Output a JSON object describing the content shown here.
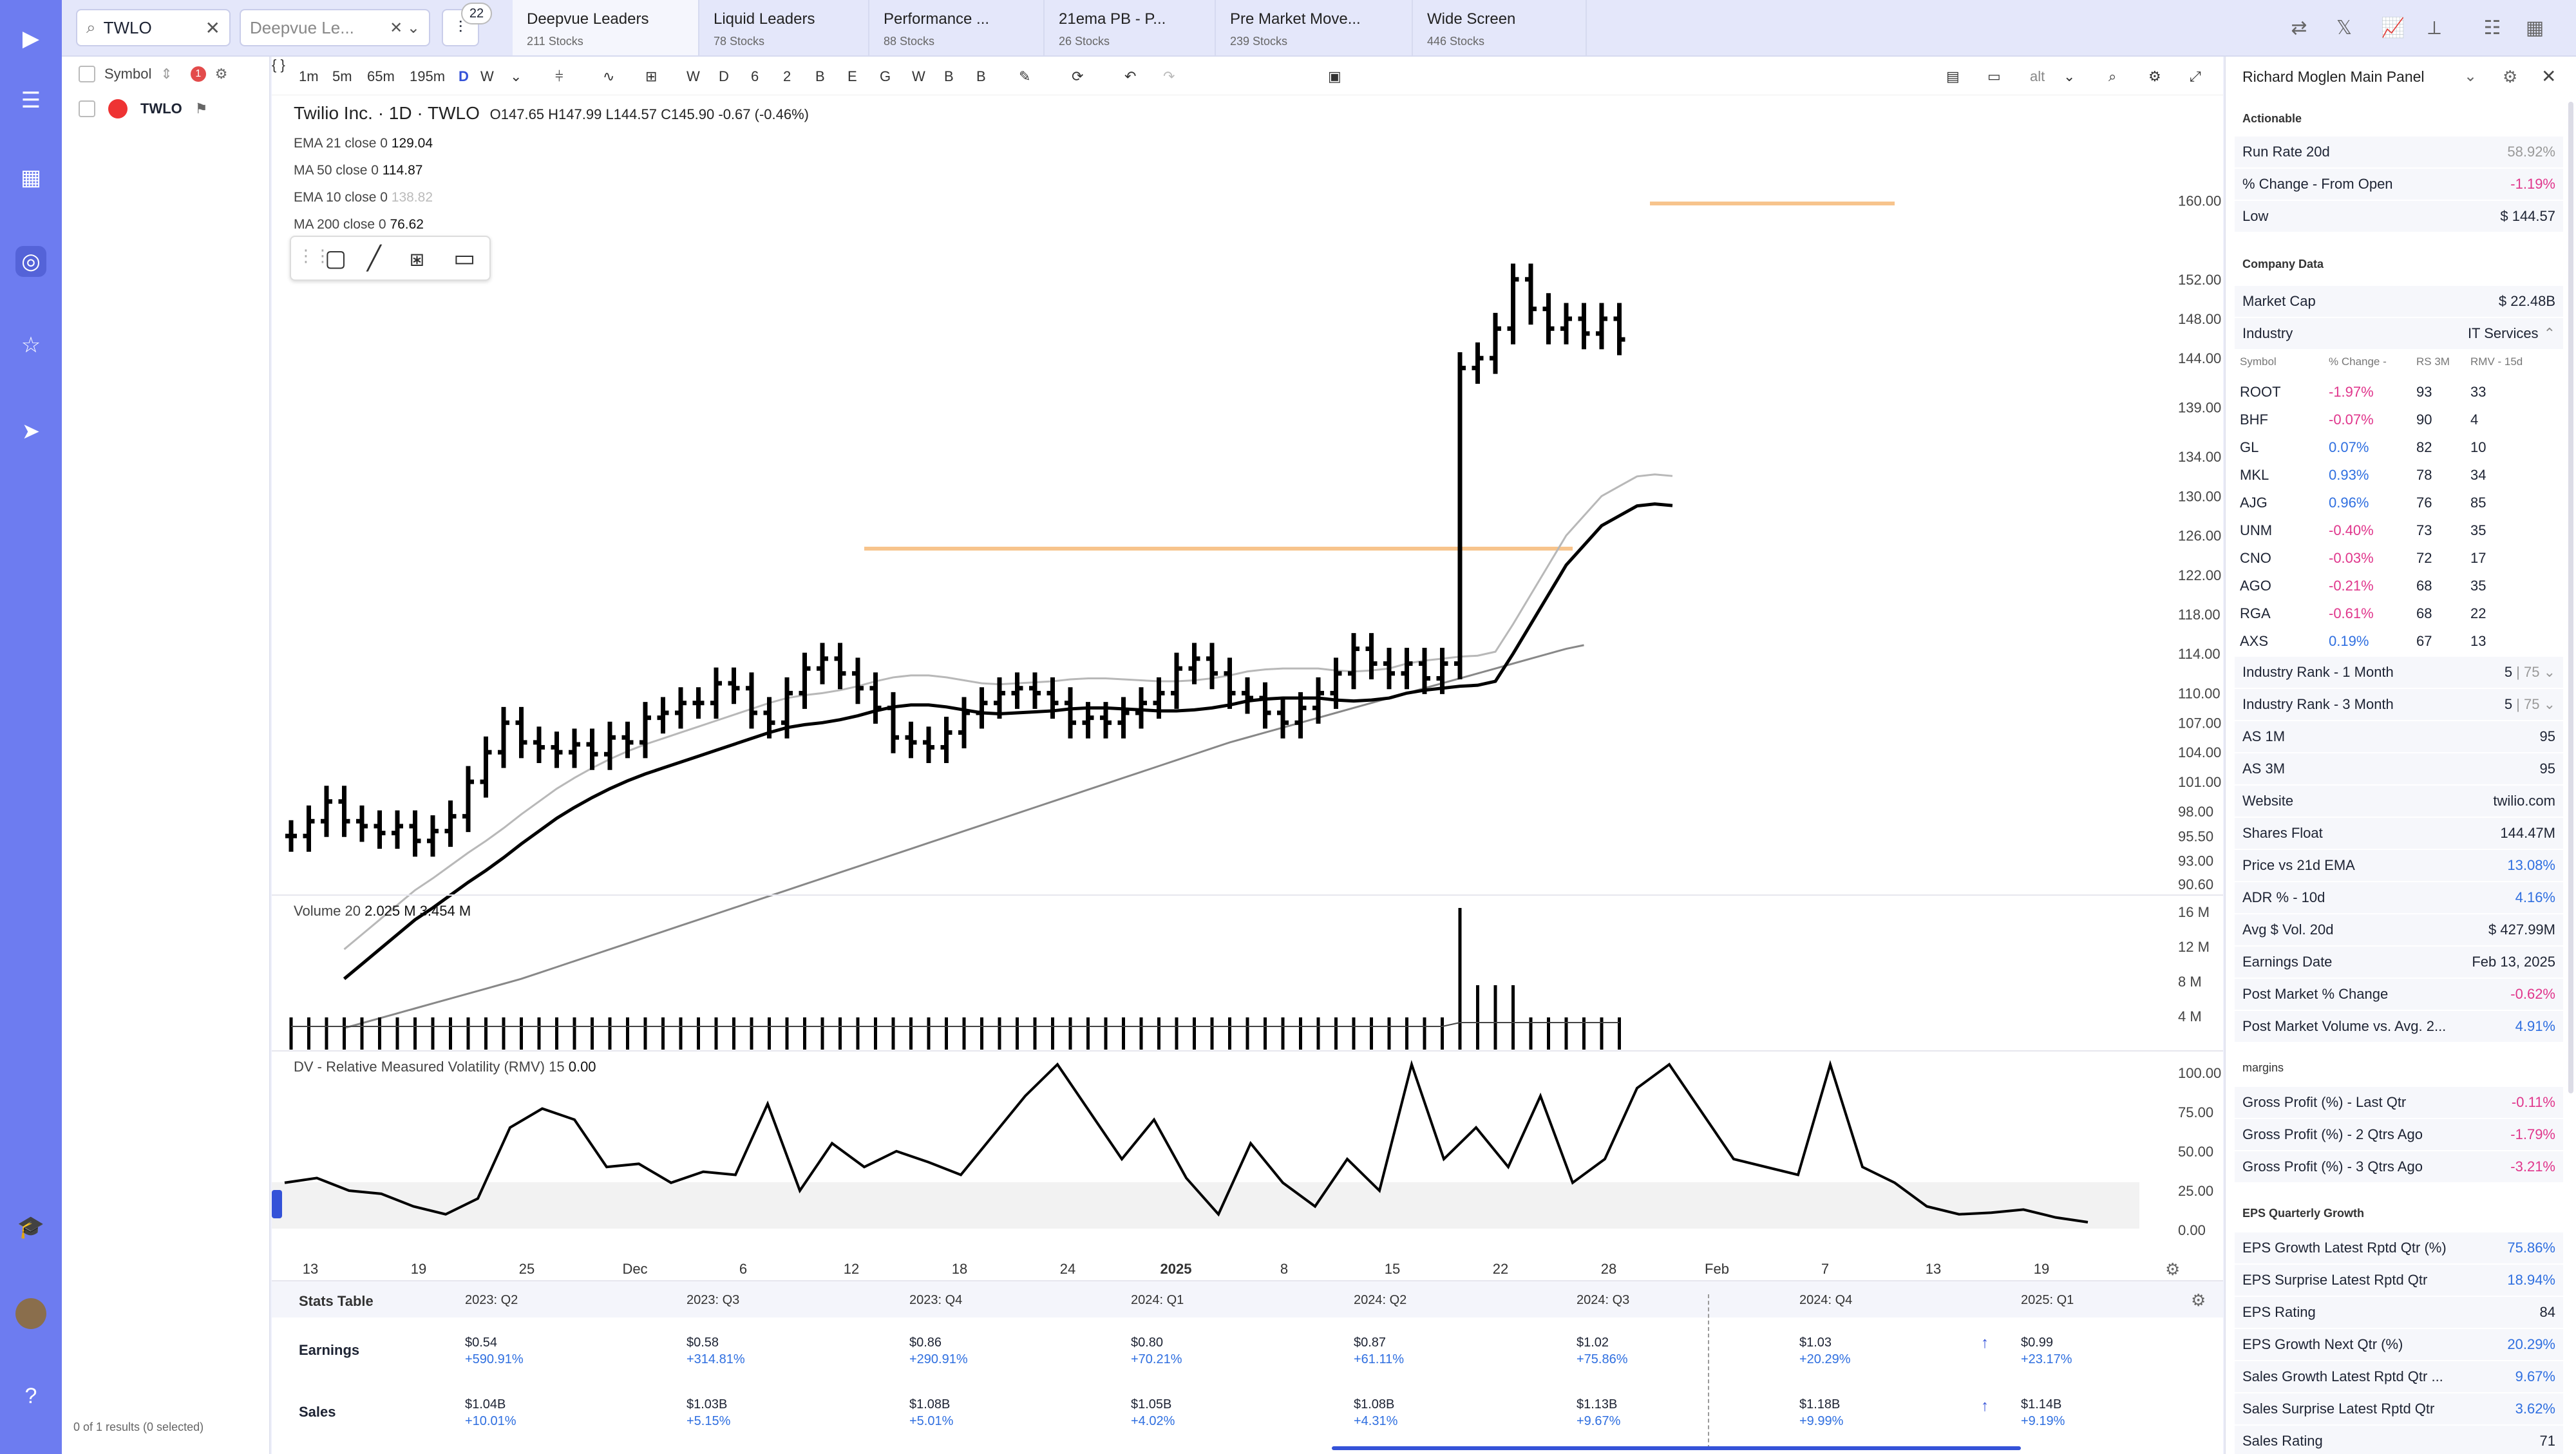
{
  "search": {
    "value": "TWLO",
    "list_value": "Deepvue Le...",
    "badge": "22"
  },
  "tabs": [
    {
      "title": "Deepvue Leaders",
      "sub": "211 Stocks"
    },
    {
      "title": "Liquid Leaders",
      "sub": "78 Stocks"
    },
    {
      "title": "Performance ...",
      "sub": "88 Stocks"
    },
    {
      "title": "21ema PB - P...",
      "sub": "26 Stocks"
    },
    {
      "title": "Pre Market Move...",
      "sub": "239 Stocks"
    },
    {
      "title": "Wide Screen",
      "sub": "446 Stocks"
    }
  ],
  "listpanel": {
    "header": "Symbol",
    "alert_count": "1",
    "row_symbol": "TWLO",
    "footer": "0 of 1 results (0 selected)"
  },
  "toolbar": {
    "intervals": [
      "1m",
      "5m",
      "65m",
      "195m",
      "D",
      "W"
    ],
    "letters": [
      "W",
      "D",
      "6",
      "2",
      "B",
      "E",
      "G",
      "W",
      "B",
      "B"
    ],
    "alt": "alt"
  },
  "legend": {
    "title": "Twilio Inc. · 1D · TWLO",
    "ohlc": "O147.65  H147.99  L144.57  C145.90  -0.67 (-0.46%)",
    "ema21": "EMA 21 close 0",
    "ema21_v": "129.04",
    "ma50": "MA 50 close 0",
    "ma50_v": "114.87",
    "ema10": "EMA 10 close 0",
    "ema10_v": "138.82",
    "ma200": "MA 200 close 0",
    "ma200_v": "76.62",
    "volume": "Volume 20",
    "volume_v": "2.025 M  3.454 M",
    "rmv": "DV - Relative Measured Volatility (RMV) 15",
    "rmv_v": "0.00"
  },
  "chart_data": {
    "type": "ohlc",
    "price_ticks": [
      "160.00",
      "152.00",
      "148.00",
      "144.00",
      "139.00",
      "134.00",
      "130.00",
      "126.00",
      "122.00",
      "118.00",
      "114.00",
      "110.00",
      "107.00",
      "104.00",
      "101.00",
      "98.00",
      "95.50",
      "93.00",
      "90.60"
    ],
    "volume_ticks": [
      "16 M",
      "12 M",
      "8 M",
      "4 M"
    ],
    "rmv_ticks": [
      "100.00",
      "75.00",
      "50.00",
      "25.00",
      "0.00"
    ],
    "x_ticks": [
      "13",
      "19",
      "25",
      "Dec",
      "6",
      "12",
      "18",
      "24",
      "2025",
      "8",
      "15",
      "22",
      "28",
      "Feb",
      "7",
      "13",
      "19"
    ],
    "close": [
      95.5,
      97,
      99,
      97,
      96.5,
      95.8,
      96.5,
      95,
      96,
      97.5,
      101,
      104,
      107,
      105,
      104.5,
      104,
      104.8,
      103.8,
      105.5,
      105,
      107.5,
      108,
      109,
      109,
      111,
      110.5,
      108,
      107,
      110,
      112.5,
      113.5,
      112,
      110.5,
      108.5,
      105.5,
      105,
      104.5,
      106,
      108,
      109,
      110,
      110.5,
      110,
      109,
      107,
      107.5,
      107,
      108,
      109,
      110,
      112.5,
      113.5,
      112,
      110,
      109.5,
      108,
      107,
      108.5,
      110,
      112,
      114.5,
      113,
      112,
      113,
      111.5,
      113,
      143,
      144,
      147,
      152,
      149,
      147,
      148,
      146.5,
      148,
      145.9
    ],
    "ema21": [
      81,
      82.5,
      84,
      85.5,
      87,
      88.2,
      89.5,
      90.8,
      92,
      93.3,
      94.7,
      96,
      97.3,
      98.4,
      99.4,
      100.3,
      101.1,
      101.8,
      102.4,
      103,
      103.6,
      104.2,
      104.8,
      105.4,
      106,
      106.5,
      106.8,
      107,
      107.3,
      107.7,
      108.2,
      108.6,
      108.8,
      108.8,
      108.6,
      108.3,
      108,
      107.9,
      108,
      108.1,
      108.2,
      108.4,
      108.5,
      108.5,
      108.4,
      108.3,
      108.2,
      108.2,
      108.3,
      108.5,
      108.8,
      109.2,
      109.4,
      109.5,
      109.5,
      109.5,
      109.3,
      109.2,
      109.3,
      109.5,
      110,
      110.3,
      110.5,
      110.7,
      110.8,
      111.2,
      114,
      117,
      120,
      123,
      125,
      127,
      128,
      129,
      129.2,
      129.04
    ],
    "ma50": [
      76,
      76.5,
      77,
      77.5,
      78,
      78.5,
      79,
      79.5,
      80,
      80.5,
      81,
      81.6,
      82.2,
      82.8,
      83.4,
      84,
      84.6,
      85.2,
      85.8,
      86.4,
      87,
      87.6,
      88.2,
      88.8,
      89.4,
      90,
      90.6,
      91.2,
      91.8,
      92.4,
      93,
      93.6,
      94.2,
      94.8,
      95.4,
      96,
      96.6,
      97.2,
      97.8,
      98.4,
      99,
      99.6,
      100.2,
      100.8,
      101.4,
      102,
      102.6,
      103.2,
      103.8,
      104.4,
      105,
      105.5,
      106,
      106.5,
      107,
      107.5,
      108,
      108.5,
      109,
      109.5,
      110,
      110.5,
      111,
      111.5,
      112,
      112.5,
      113,
      113.5,
      114,
      114.5,
      114.87
    ]
  },
  "stats": {
    "title": "Stats Table",
    "columns": [
      "2023: Q2",
      "2023: Q3",
      "2023: Q4",
      "2024: Q1",
      "2024: Q2",
      "2024: Q3",
      "2024: Q4",
      "2025: Q1"
    ],
    "earnings_label": "Earnings",
    "sales_label": "Sales",
    "earnings": [
      {
        "v": "$0.54",
        "g": "+590.91%"
      },
      {
        "v": "$0.58",
        "g": "+314.81%"
      },
      {
        "v": "$0.86",
        "g": "+290.91%"
      },
      {
        "v": "$0.80",
        "g": "+70.21%"
      },
      {
        "v": "$0.87",
        "g": "+61.11%"
      },
      {
        "v": "$1.02",
        "g": "+75.86%"
      },
      {
        "v": "$1.03",
        "g": "+20.29%"
      },
      {
        "v": "$0.99",
        "g": "+23.17%"
      }
    ],
    "sales": [
      {
        "v": "$1.04B",
        "g": "+10.01%"
      },
      {
        "v": "$1.03B",
        "g": "+5.15%"
      },
      {
        "v": "$1.08B",
        "g": "+5.01%"
      },
      {
        "v": "$1.05B",
        "g": "+4.02%"
      },
      {
        "v": "$1.08B",
        "g": "+4.31%"
      },
      {
        "v": "$1.13B",
        "g": "+9.67%"
      },
      {
        "v": "$1.18B",
        "g": "+9.99%"
      },
      {
        "v": "$1.14B",
        "g": "+9.19%"
      }
    ]
  },
  "panel": {
    "title": "Richard Moglen Main Panel",
    "sec_actionable": "Actionable",
    "run_rate": "Run Rate 20d",
    "run_rate_v": "58.92%",
    "pct_open": "% Change - From Open",
    "pct_open_v": "-1.19%",
    "low": "Low",
    "low_v": "$ 144.57",
    "sec_company": "Company Data",
    "mcap": "Market Cap",
    "mcap_v": "$ 22.48B",
    "industry": "Industry",
    "industry_v": "IT Services",
    "ind_hdr": [
      "Symbol",
      "% Change -",
      "RS 3M",
      "RMV - 15d"
    ],
    "ind_rows": [
      [
        "ROOT",
        "-1.97%",
        "93",
        "33"
      ],
      [
        "BHF",
        "-0.07%",
        "90",
        "4"
      ],
      [
        "GL",
        "0.07%",
        "82",
        "10"
      ],
      [
        "MKL",
        "0.93%",
        "78",
        "34"
      ],
      [
        "AJG",
        "0.96%",
        "76",
        "85"
      ],
      [
        "UNM",
        "-0.40%",
        "73",
        "35"
      ],
      [
        "CNO",
        "-0.03%",
        "72",
        "17"
      ],
      [
        "AGO",
        "-0.21%",
        "68",
        "35"
      ],
      [
        "RGA",
        "-0.61%",
        "68",
        "22"
      ],
      [
        "AXS",
        "0.19%",
        "67",
        "13"
      ]
    ],
    "rows2": [
      [
        "Industry Rank - 1 Month",
        "5",
        "75"
      ],
      [
        "Industry Rank - 3 Month",
        "5",
        "75"
      ]
    ],
    "rows3": [
      [
        "AS 1M",
        "95"
      ],
      [
        "AS 3M",
        "95"
      ],
      [
        "Website",
        "twilio.com"
      ],
      [
        "Shares Float",
        "144.47M"
      ],
      [
        "Price vs 21d EMA",
        "13.08%"
      ],
      [
        "ADR % - 10d",
        "4.16%"
      ],
      [
        "Avg $ Vol. 20d",
        "$ 427.99M"
      ],
      [
        "Earnings Date",
        "Feb 13, 2025"
      ],
      [
        "Post Market % Change",
        "-0.62%"
      ],
      [
        "Post Market Volume vs. Avg. 2...",
        "4.91%"
      ]
    ],
    "sec_margins": "margins",
    "rows4": [
      [
        "Gross Profit (%) - Last Qtr",
        "-0.11%"
      ],
      [
        "Gross Profit (%) - 2 Qtrs Ago",
        "-1.79%"
      ],
      [
        "Gross Profit (%) - 3 Qtrs Ago",
        "-3.21%"
      ]
    ],
    "sec_eps": "EPS Quarterly Growth",
    "rows5": [
      [
        "EPS Growth Latest Rptd Qtr (%)",
        "75.86%"
      ],
      [
        "EPS Surprise Latest Rptd Qtr",
        "18.94%"
      ],
      [
        "EPS Rating",
        "84"
      ],
      [
        "EPS Growth Next Qtr (%)",
        "20.29%"
      ],
      [
        "Sales Growth Latest Rptd Qtr ...",
        "9.67%"
      ],
      [
        "Sales Surprise Latest Rptd Qtr",
        "3.62%"
      ],
      [
        "Sales Rating",
        "71"
      ]
    ]
  }
}
